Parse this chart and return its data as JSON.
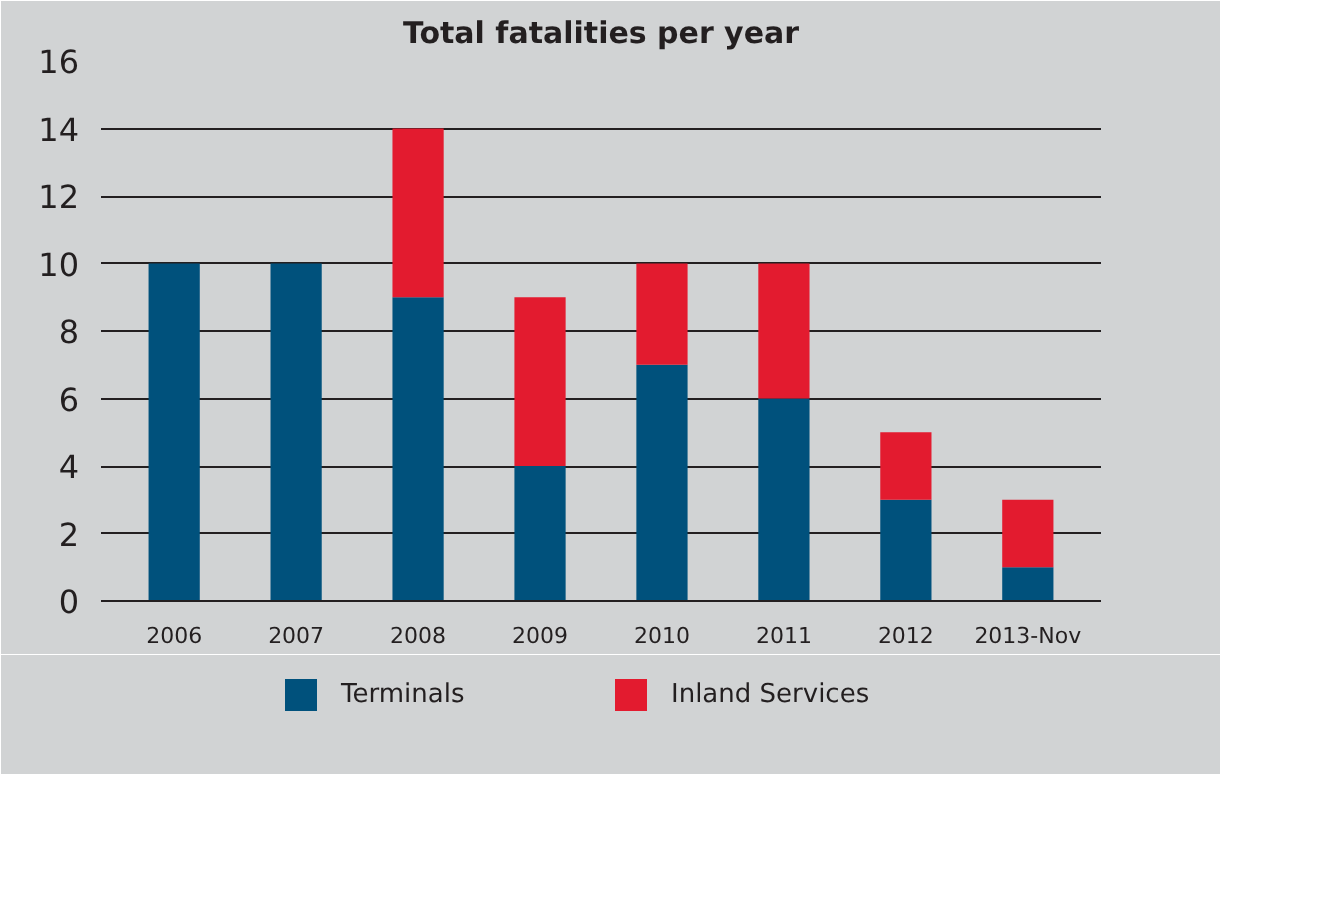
{
  "chart_data": {
    "type": "bar",
    "title": "Total fatalities per year",
    "stacked": true,
    "categories": [
      "2006",
      "2007",
      "2008",
      "2009",
      "2010",
      "2011",
      "2012",
      "2013-Nov"
    ],
    "series": [
      {
        "name": "Terminals",
        "color": "#00517c",
        "values": [
          10,
          10,
          9,
          4,
          7,
          6,
          3,
          1
        ]
      },
      {
        "name": "Inland Services",
        "color": "#e31b2f",
        "values": [
          0,
          0,
          5,
          5,
          3,
          4,
          2,
          2
        ]
      }
    ],
    "ylim": [
      0,
      16
    ],
    "yticks": [
      0,
      2,
      4,
      6,
      8,
      10,
      12,
      14,
      16
    ],
    "grid": "y",
    "legend": "bottom"
  }
}
